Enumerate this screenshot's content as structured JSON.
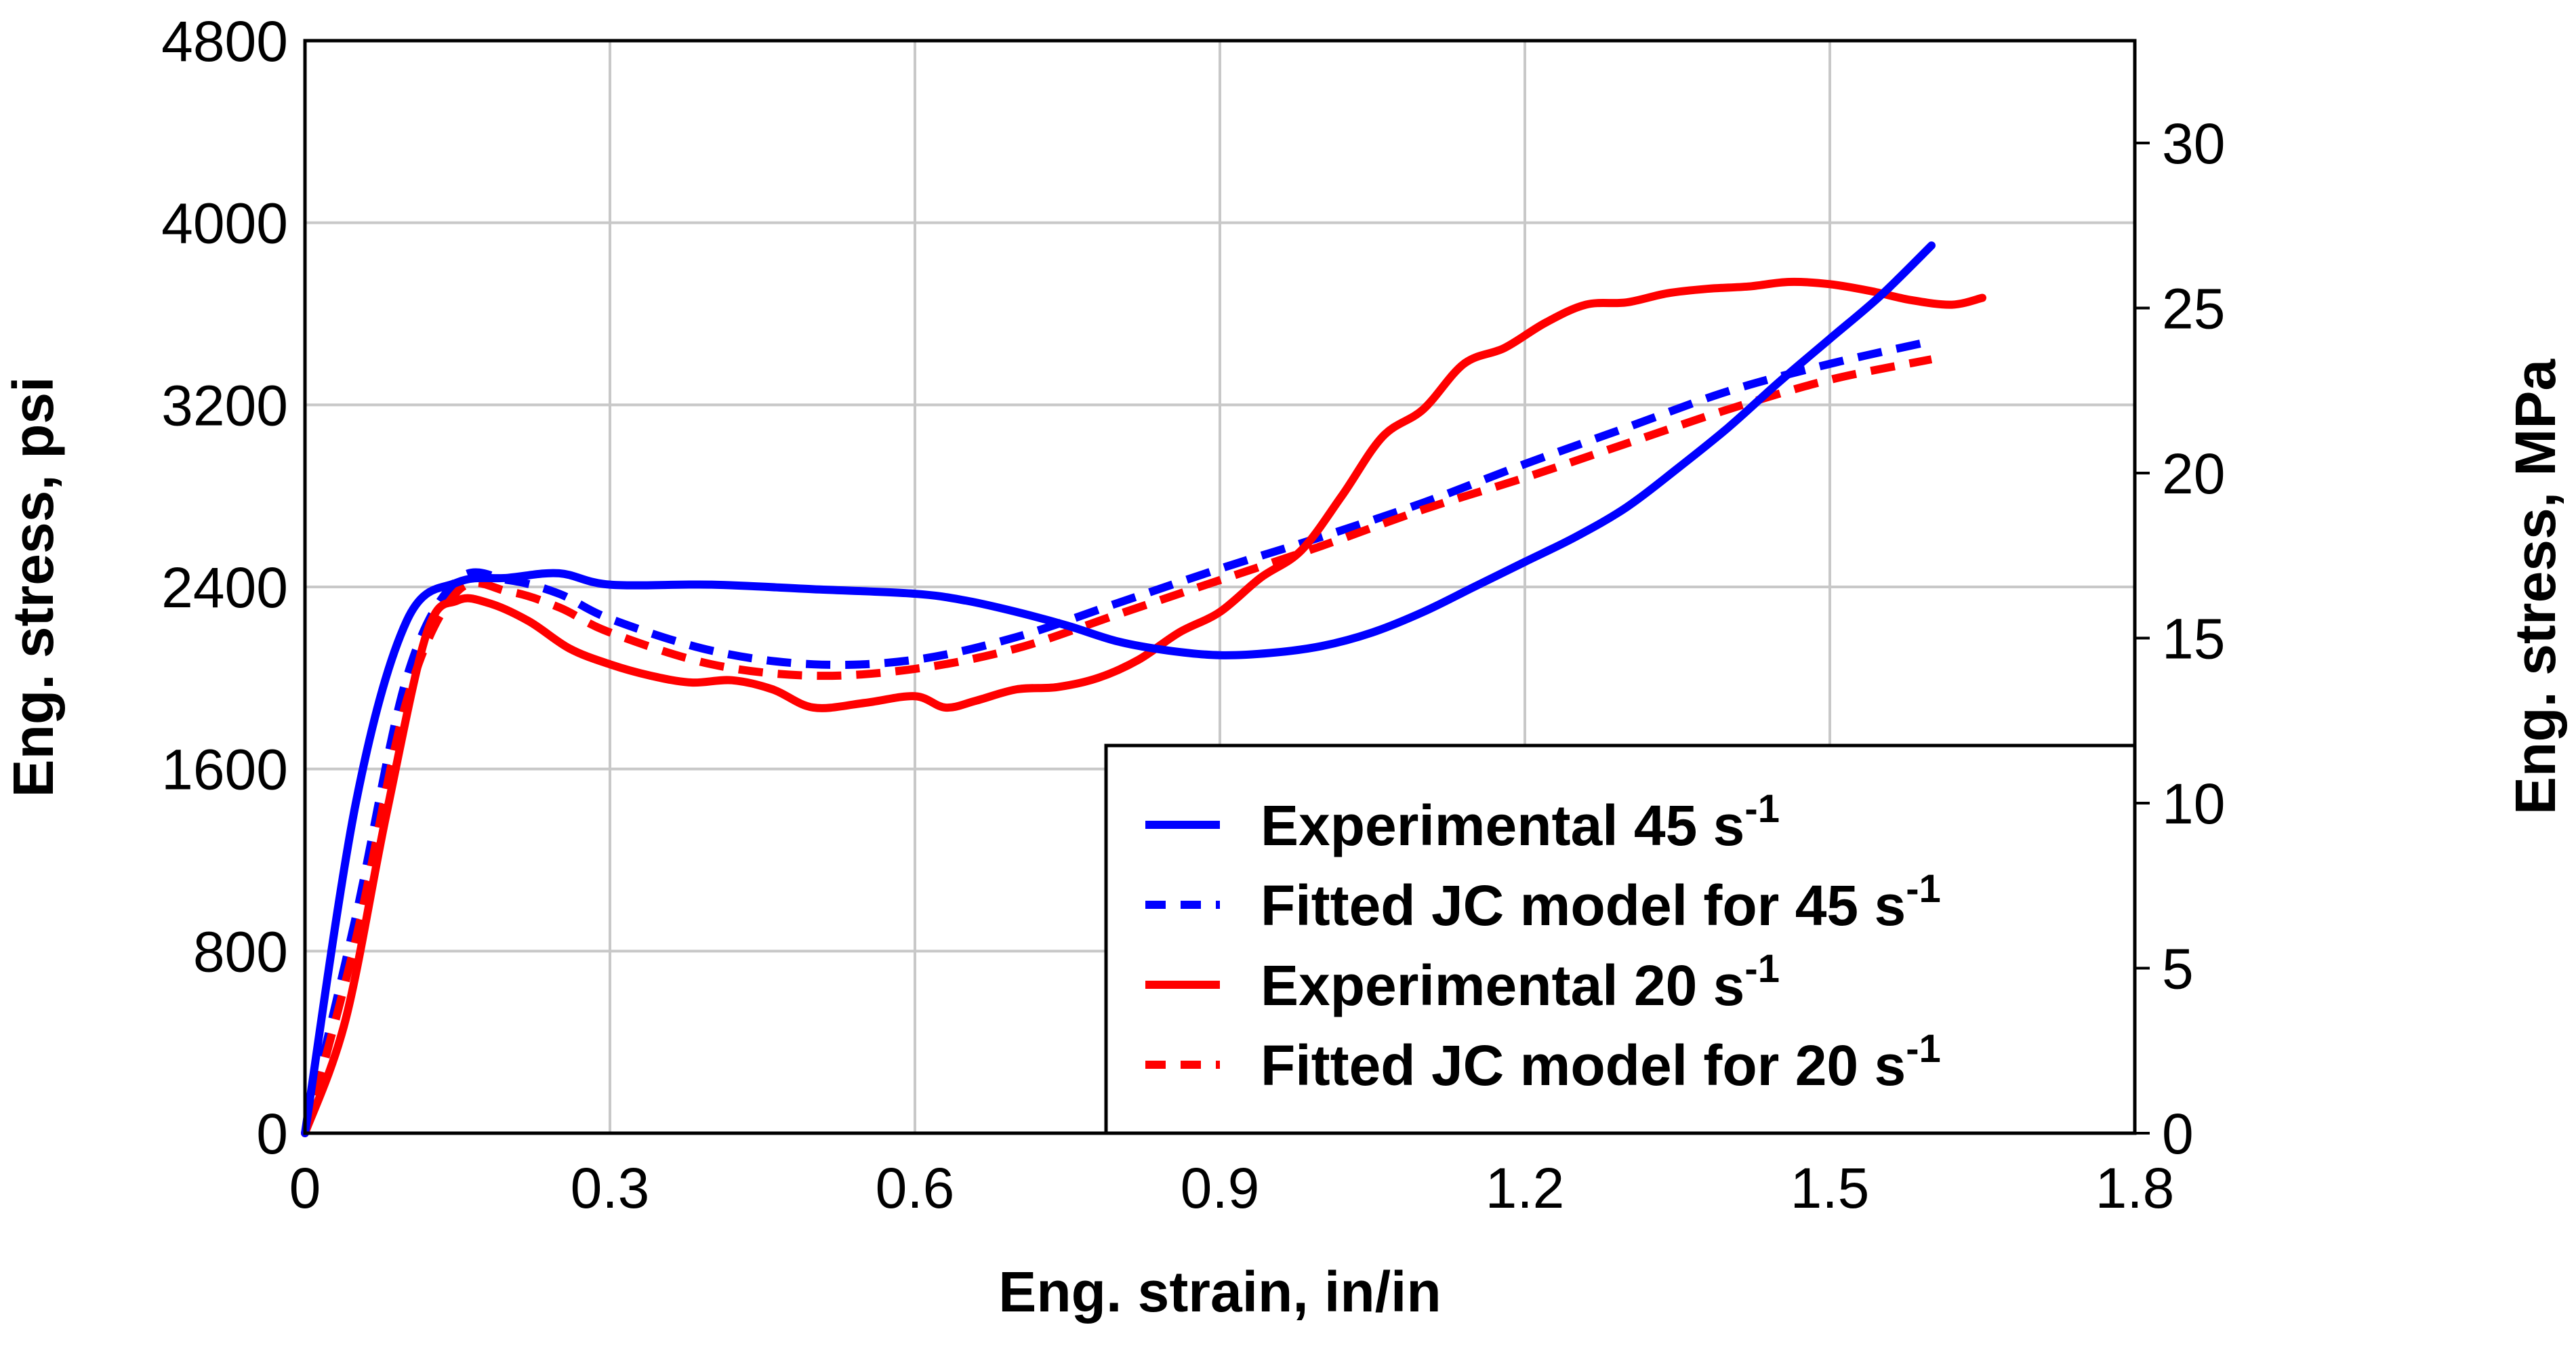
{
  "chart_data": {
    "type": "line",
    "title": "",
    "xlabel": "Eng. strain, in/in",
    "ylabel": "Eng. stress, psi",
    "y2label": "Eng. stress, MPa",
    "xlim": [
      0,
      1.8
    ],
    "ylim": [
      0,
      4800
    ],
    "y2lim": [
      0,
      33.1
    ],
    "x_ticks": [
      "0",
      "0.3",
      "0.6",
      "0.9",
      "1.2",
      "1.5",
      "1.8"
    ],
    "y_ticks": [
      "0",
      "800",
      "1600",
      "2400",
      "3200",
      "4000",
      "4800"
    ],
    "y2_ticks": [
      "0",
      "5",
      "10",
      "15",
      "20",
      "25",
      "30"
    ],
    "grid": true,
    "legend_position": "bottom-right",
    "series": [
      {
        "name": "Experimental 45",
        "unit_base": "s",
        "unit_exp": "-1",
        "color": "#0000ff",
        "dash": "solid",
        "x": [
          0,
          0.05,
          0.1,
          0.15,
          0.2,
          0.25,
          0.3,
          0.4,
          0.5,
          0.6,
          0.65,
          0.7,
          0.75,
          0.8,
          0.85,
          0.9,
          0.95,
          1.0,
          1.05,
          1.1,
          1.15,
          1.2,
          1.25,
          1.3,
          1.35,
          1.4,
          1.45,
          1.5,
          1.55,
          1.6
        ],
        "y": [
          0,
          1450,
          2250,
          2420,
          2440,
          2460,
          2410,
          2410,
          2390,
          2370,
          2340,
          2290,
          2230,
          2160,
          2120,
          2100,
          2110,
          2140,
          2200,
          2290,
          2400,
          2510,
          2620,
          2750,
          2920,
          3100,
          3300,
          3490,
          3680,
          3900
        ]
      },
      {
        "name": "Fitted JC model for 45",
        "unit_base": "s",
        "unit_exp": "-1",
        "color": "#0000ff",
        "dash": "dashed",
        "x": [
          0,
          0.05,
          0.1,
          0.15,
          0.2,
          0.25,
          0.3,
          0.4,
          0.5,
          0.6,
          0.7,
          0.8,
          0.9,
          1.0,
          1.1,
          1.2,
          1.3,
          1.4,
          1.5,
          1.6
        ],
        "y": [
          0,
          950,
          2000,
          2430,
          2430,
          2370,
          2260,
          2120,
          2060,
          2080,
          2180,
          2330,
          2480,
          2620,
          2770,
          2940,
          3100,
          3260,
          3380,
          3480
        ]
      },
      {
        "name": "Experimental 20",
        "unit_base": "s",
        "unit_exp": "-1",
        "color": "#ff0000",
        "dash": "solid",
        "x": [
          0,
          0.04,
          0.08,
          0.12,
          0.15,
          0.18,
          0.22,
          0.26,
          0.3,
          0.34,
          0.38,
          0.42,
          0.46,
          0.5,
          0.55,
          0.6,
          0.63,
          0.66,
          0.7,
          0.74,
          0.78,
          0.82,
          0.86,
          0.9,
          0.94,
          0.98,
          1.02,
          1.06,
          1.1,
          1.14,
          1.18,
          1.22,
          1.26,
          1.3,
          1.34,
          1.38,
          1.42,
          1.46,
          1.5,
          1.54,
          1.58,
          1.62,
          1.65
        ],
        "y": [
          0,
          500,
          1400,
          2200,
          2340,
          2330,
          2250,
          2130,
          2060,
          2010,
          1980,
          1990,
          1950,
          1870,
          1890,
          1920,
          1870,
          1900,
          1950,
          1960,
          2000,
          2080,
          2200,
          2290,
          2440,
          2560,
          2800,
          3060,
          3180,
          3380,
          3450,
          3560,
          3640,
          3650,
          3690,
          3710,
          3720,
          3740,
          3730,
          3700,
          3660,
          3640,
          3670
        ]
      },
      {
        "name": "Fitted JC model for 20",
        "unit_base": "s",
        "unit_exp": "-1",
        "color": "#ff0000",
        "dash": "dashed",
        "x": [
          0,
          0.05,
          0.1,
          0.15,
          0.2,
          0.25,
          0.3,
          0.4,
          0.5,
          0.6,
          0.7,
          0.8,
          0.9,
          1.0,
          1.1,
          1.2,
          1.3,
          1.4,
          1.5,
          1.6
        ],
        "y": [
          0,
          850,
          1900,
          2380,
          2380,
          2310,
          2200,
          2060,
          2010,
          2040,
          2130,
          2280,
          2430,
          2580,
          2740,
          2880,
          3030,
          3180,
          3310,
          3400
        ]
      }
    ]
  }
}
